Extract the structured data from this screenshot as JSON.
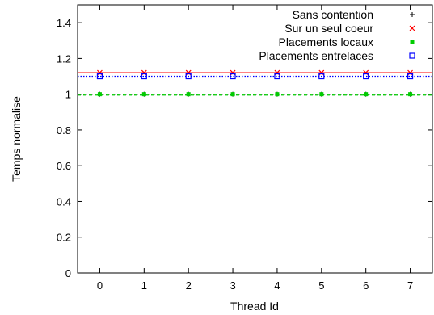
{
  "chart_data": {
    "type": "scatter",
    "xlabel": "Thread Id",
    "ylabel": "Temps normalise",
    "xlim": [
      -0.5,
      7.5
    ],
    "ylim": [
      0,
      1.5
    ],
    "x_ticks": [
      0,
      1,
      2,
      3,
      4,
      5,
      6,
      7
    ],
    "y_ticks": [
      0,
      0.2,
      0.4,
      0.6,
      0.8,
      1,
      1.2,
      1.4
    ],
    "y_tick_labels": [
      "0",
      "0.2",
      "0.4",
      "0.6",
      "0.8",
      "1",
      "1.2",
      "1.4"
    ],
    "grid": false,
    "legend_position": "top-right",
    "series": [
      {
        "name": "Sans contention",
        "marker": "plus",
        "color": "#000000",
        "x": [
          0,
          1,
          2,
          3,
          4,
          5,
          6,
          7
        ],
        "y": [
          1.0,
          1.0,
          1.0,
          1.0,
          1.0,
          1.0,
          1.0,
          1.0
        ],
        "mean_line": 1.0,
        "line_style": "dotted"
      },
      {
        "name": "Sur un seul coeur",
        "marker": "cross",
        "color": "#ff0000",
        "x": [
          0,
          1,
          2,
          3,
          4,
          5,
          6,
          7
        ],
        "y": [
          1.12,
          1.12,
          1.12,
          1.12,
          1.12,
          1.12,
          1.12,
          1.12
        ],
        "mean_line": 1.12,
        "line_style": "solid"
      },
      {
        "name": "Placements locaux",
        "marker": "filled-square",
        "color": "#00cc00",
        "x": [
          0,
          1,
          2,
          3,
          4,
          5,
          6,
          7
        ],
        "y": [
          1.0,
          1.0,
          1.0,
          1.0,
          1.0,
          1.0,
          1.0,
          1.0
        ],
        "mean_line": 0.995,
        "line_style": "dashed"
      },
      {
        "name": "Placements entrelaces",
        "marker": "open-square",
        "color": "#0000ff",
        "x": [
          0,
          1,
          2,
          3,
          4,
          5,
          6,
          7
        ],
        "y": [
          1.1,
          1.1,
          1.1,
          1.1,
          1.1,
          1.1,
          1.1,
          1.1
        ],
        "mean_line": 1.1,
        "line_style": "dotted"
      }
    ]
  }
}
